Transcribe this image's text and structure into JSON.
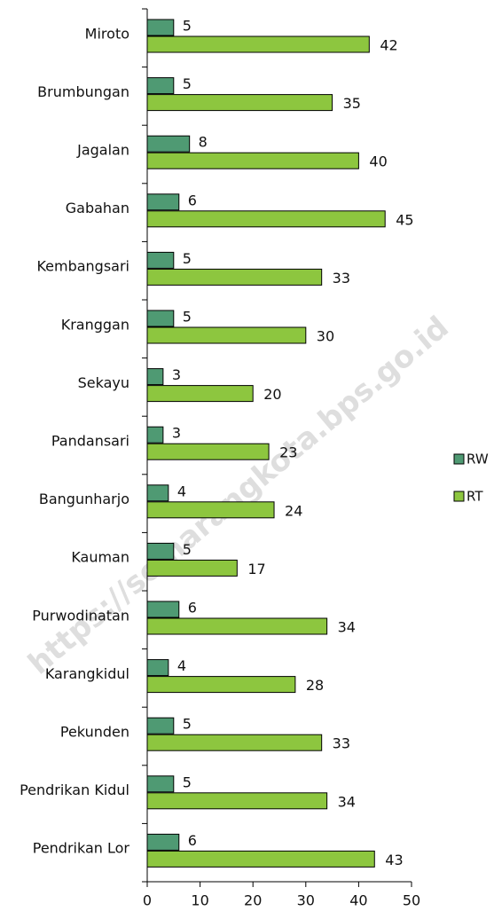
{
  "chart_data": {
    "type": "hbar",
    "categories": [
      "Miroto",
      "Brumbungan",
      "Jagalan",
      "Gabahan",
      "Kembangsari",
      "Kranggan",
      "Sekayu",
      "Pandansari",
      "Bangunharjo",
      "Kauman",
      "Purwodinatan",
      "Karangkidul",
      "Pekunden",
      "Pendrikan Kidul",
      "Pendrikan Lor"
    ],
    "series": [
      {
        "name": "RW",
        "color": "#4f9a73",
        "values": [
          5,
          5,
          8,
          6,
          5,
          5,
          3,
          3,
          4,
          5,
          6,
          4,
          5,
          5,
          6
        ]
      },
      {
        "name": "RT",
        "color": "#8dc63f",
        "values": [
          42,
          35,
          40,
          45,
          33,
          30,
          20,
          23,
          24,
          17,
          34,
          28,
          33,
          34,
          43
        ]
      }
    ],
    "xlim": [
      0,
      50
    ],
    "xticks": [
      0,
      10,
      20,
      30,
      40,
      50
    ],
    "legend": "right",
    "watermark": "https://semarangkota.bps.go.id"
  }
}
